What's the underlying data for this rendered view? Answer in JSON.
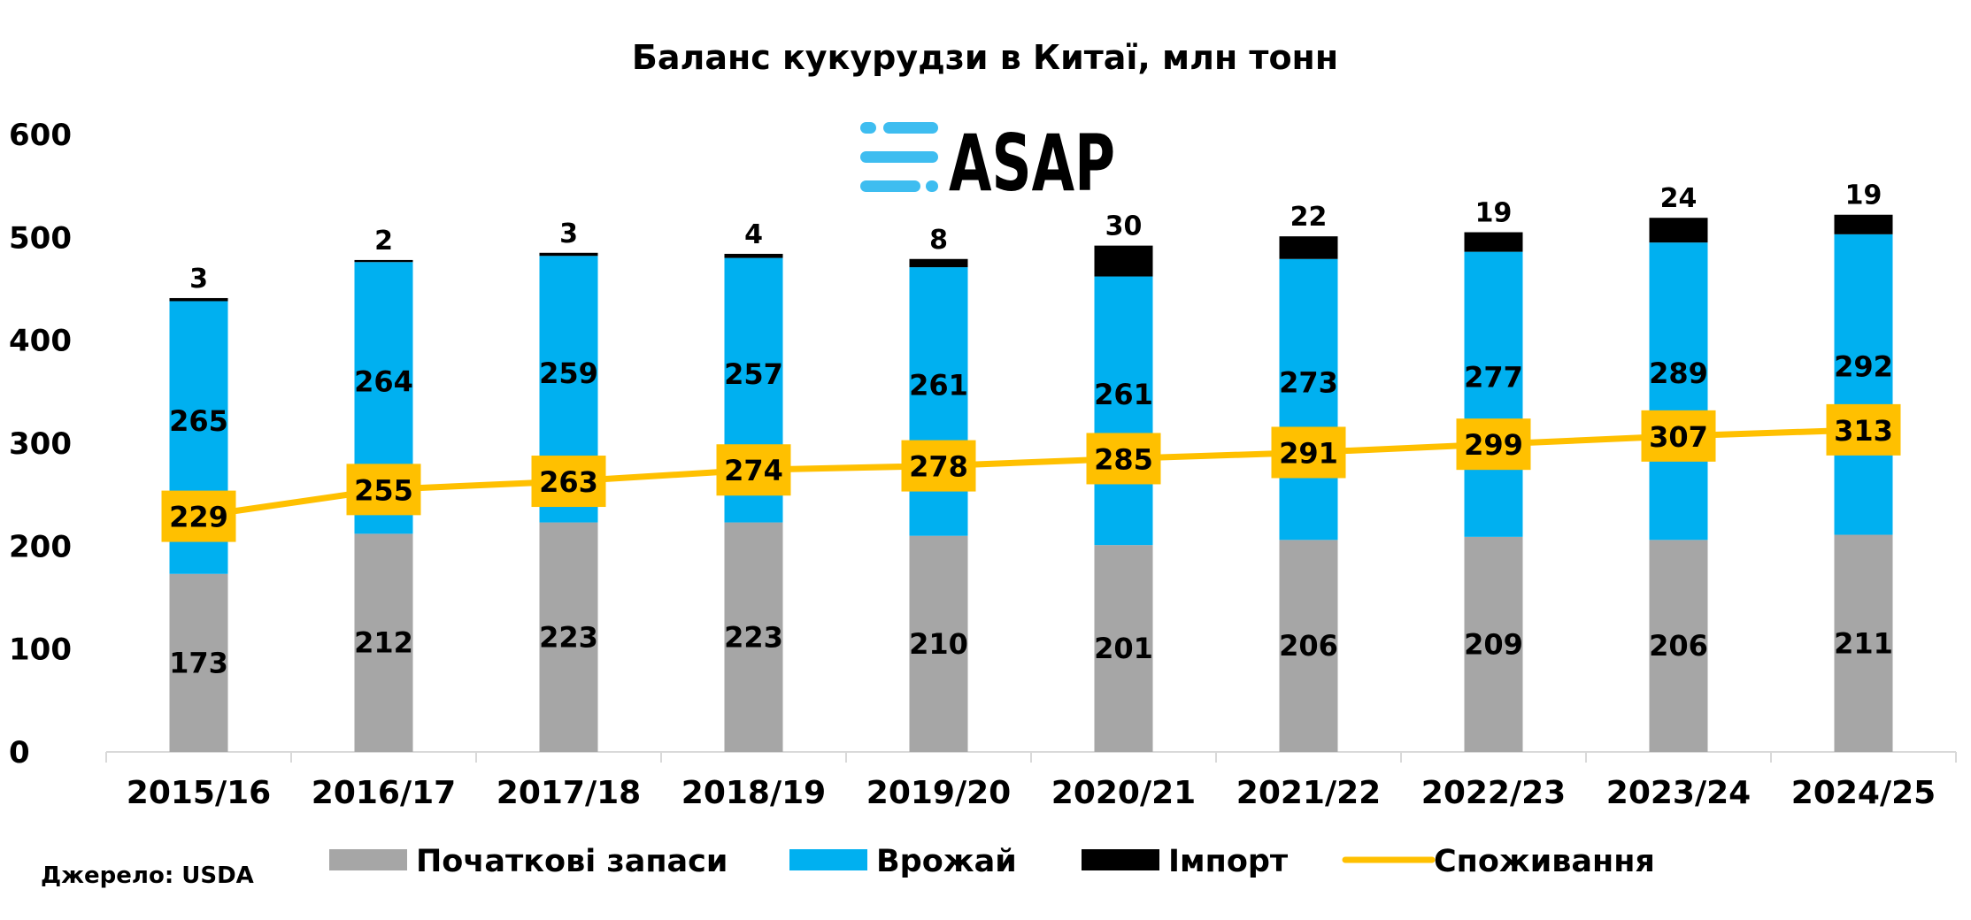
{
  "logo": {
    "text": "ASAP"
  },
  "source": "Джерело: USDA",
  "colors": {
    "stocks": "#a6a6a6",
    "harvest": "#00b0f0",
    "imports": "#000000",
    "consumption": "#ffc000",
    "logo_accent": "#3ebdf0"
  },
  "chart_data": {
    "type": "bar",
    "stacked": true,
    "title": "Баланс кукурудзи в Китаї, млн тонн",
    "xlabel": "",
    "ylabel": "",
    "ylim": [
      0,
      600
    ],
    "yticks": [
      0,
      100,
      200,
      300,
      400,
      500,
      600
    ],
    "grid": false,
    "legend_position": "bottom",
    "categories": [
      "2015/16",
      "2016/17",
      "2017/18",
      "2018/19",
      "2019/20",
      "2020/21",
      "2021/22",
      "2022/23",
      "2023/24",
      "2024/25"
    ],
    "series": [
      {
        "name": "Початкові запаси",
        "type": "bar",
        "values": [
          173,
          212,
          223,
          223,
          210,
          201,
          206,
          209,
          206,
          211
        ]
      },
      {
        "name": "Врожай",
        "type": "bar",
        "values": [
          265,
          264,
          259,
          257,
          261,
          261,
          273,
          277,
          289,
          292
        ]
      },
      {
        "name": "Імпорт",
        "type": "bar",
        "values": [
          3,
          2,
          3,
          4,
          8,
          30,
          22,
          19,
          24,
          19
        ]
      },
      {
        "name": "Споживання",
        "type": "line",
        "values": [
          229,
          255,
          263,
          274,
          278,
          285,
          291,
          299,
          307,
          313
        ]
      }
    ]
  }
}
